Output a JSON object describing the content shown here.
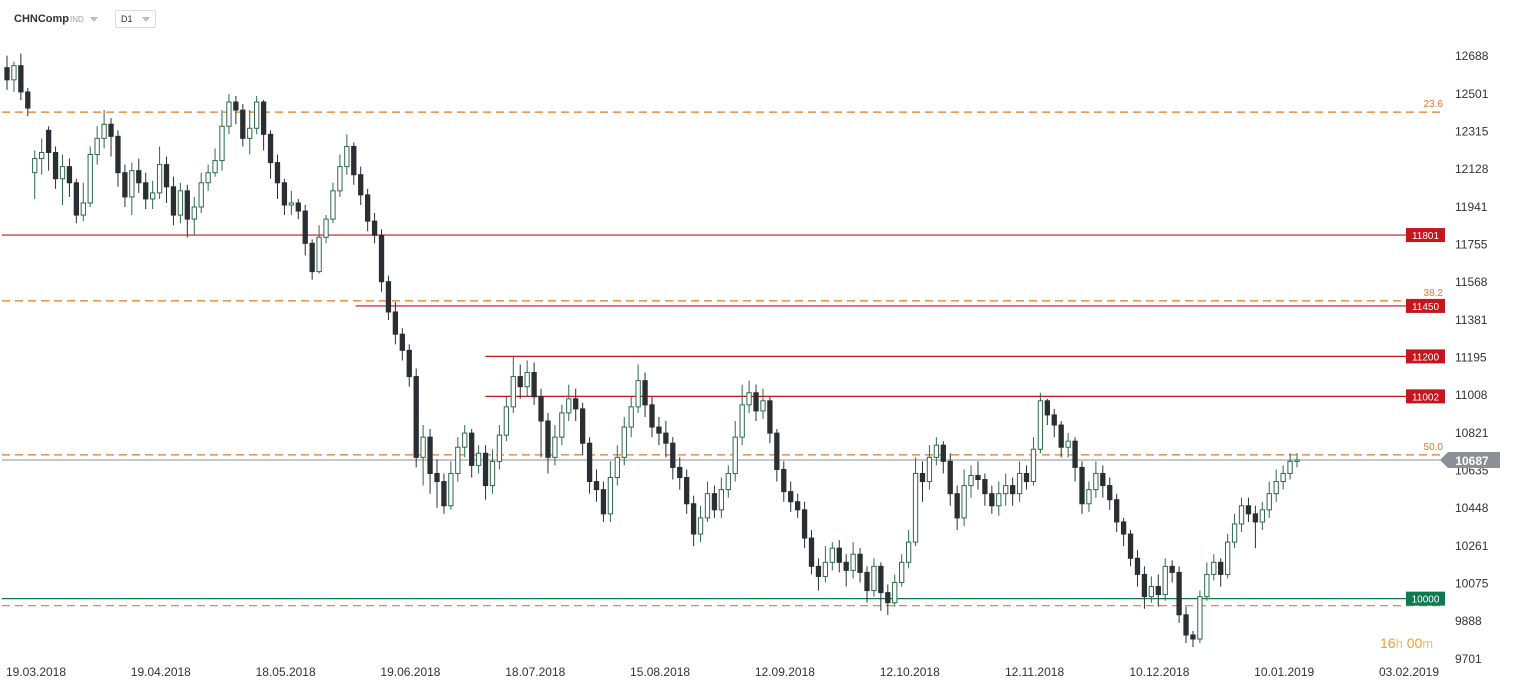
{
  "header": {
    "symbol": "CHNComp",
    "market": "IND",
    "timeframe": "D1"
  },
  "timer": {
    "hours": "16",
    "hours_unit": "h",
    "minutes": "00",
    "minutes_unit": "m"
  },
  "colors": {
    "bull_fill": "#ffffff",
    "bull_stroke": "#2d6b4a",
    "bear_fill": "#2a2f33",
    "resistance": "#c4161c",
    "support": "#0f7a52",
    "fib": "#e07a2a",
    "price_tag": "#8a9096",
    "axis_text": "#333333",
    "timer": "#f0a030"
  },
  "chart_data": {
    "type": "candlestick",
    "title": "",
    "xlabel": "",
    "ylabel": "",
    "ylim": [
      9701,
      12688
    ],
    "y_ticks": [
      12688,
      12501,
      12315,
      12128,
      11941,
      11755,
      11568,
      11381,
      11195,
      11008,
      10821,
      10635,
      10448,
      10261,
      10075,
      9888,
      9701
    ],
    "x_ticks": [
      "19.03.2018",
      "19.04.2018",
      "18.05.2018",
      "19.06.2018",
      "18.07.2018",
      "15.08.2018",
      "12.09.2018",
      "12.10.2018",
      "12.11.2018",
      "10.12.2018",
      "10.01.2019",
      "03.02.2019"
    ],
    "current_price": {
      "value": 10687,
      "label": "10687"
    },
    "horizontal_levels": [
      {
        "value": 11801,
        "label": "11801",
        "kind": "resistance",
        "x_start": 0
      },
      {
        "value": 11450,
        "label": "11450",
        "kind": "resistance",
        "x_start": 0.245
      },
      {
        "value": 11200,
        "label": "11200",
        "kind": "resistance",
        "x_start": 0.335
      },
      {
        "value": 11002,
        "label": "11002",
        "kind": "resistance",
        "x_start": 0.335
      },
      {
        "value": 10000,
        "label": "10000",
        "kind": "support",
        "x_start": 0
      }
    ],
    "fib_levels": [
      {
        "value": 12410,
        "label": "23.6"
      },
      {
        "value": 11475,
        "label": "38.2"
      },
      {
        "value": 10712,
        "label": "50.0"
      },
      {
        "value": 9965,
        "label": ""
      }
    ],
    "candles": [
      [
        12630,
        12570,
        12690,
        12520
      ],
      [
        12570,
        12640,
        12660,
        12510
      ],
      [
        12640,
        12510,
        12700,
        12470
      ],
      [
        12510,
        12430,
        12530,
        12390
      ],
      [
        12110,
        12180,
        12220,
        11980
      ],
      [
        12180,
        12210,
        12280,
        12100
      ],
      [
        12320,
        12210,
        12340,
        12120
      ],
      [
        12210,
        12080,
        12240,
        12030
      ],
      [
        12080,
        12140,
        12200,
        11950
      ],
      [
        12140,
        12060,
        12180,
        11990
      ],
      [
        12060,
        11900,
        12080,
        11860
      ],
      [
        11900,
        11960,
        12060,
        11870
      ],
      [
        11960,
        12200,
        12240,
        11940
      ],
      [
        12200,
        12280,
        12340,
        12150
      ],
      [
        12280,
        12350,
        12420,
        12230
      ],
      [
        12350,
        12290,
        12380,
        12190
      ],
      [
        12290,
        12110,
        12320,
        12040
      ],
      [
        12110,
        11990,
        12150,
        11940
      ],
      [
        11990,
        12120,
        12160,
        11900
      ],
      [
        12120,
        12060,
        12180,
        12010
      ],
      [
        12060,
        11980,
        12110,
        11930
      ],
      [
        11980,
        12010,
        12070,
        11930
      ],
      [
        12010,
        12150,
        12240,
        11980
      ],
      [
        12150,
        12040,
        12190,
        11960
      ],
      [
        12040,
        11900,
        12090,
        11850
      ],
      [
        11900,
        12020,
        12060,
        11860
      ],
      [
        12020,
        11880,
        12050,
        11790
      ],
      [
        11880,
        11940,
        11990,
        11800
      ],
      [
        11940,
        12060,
        12110,
        11910
      ],
      [
        12060,
        12110,
        12150,
        12020
      ],
      [
        12110,
        12170,
        12230,
        12090
      ],
      [
        12170,
        12340,
        12420,
        12120
      ],
      [
        12340,
        12460,
        12500,
        12300
      ],
      [
        12460,
        12420,
        12490,
        12350
      ],
      [
        12420,
        12280,
        12450,
        12240
      ],
      [
        12280,
        12330,
        12420,
        12200
      ],
      [
        12330,
        12460,
        12490,
        12300
      ],
      [
        12460,
        12300,
        12470,
        12220
      ],
      [
        12300,
        12160,
        12320,
        12080
      ],
      [
        12160,
        12060,
        12200,
        11980
      ],
      [
        12060,
        11950,
        12080,
        11900
      ],
      [
        11950,
        11960,
        12020,
        11900
      ],
      [
        11960,
        11920,
        11980,
        11880
      ],
      [
        11920,
        11760,
        11950,
        11700
      ],
      [
        11760,
        11620,
        11780,
        11580
      ],
      [
        11620,
        11790,
        11850,
        11610
      ],
      [
        11790,
        11880,
        11900,
        11760
      ],
      [
        11880,
        12020,
        12060,
        11860
      ],
      [
        12020,
        12140,
        12200,
        11990
      ],
      [
        12140,
        12240,
        12300,
        12100
      ],
      [
        12240,
        12100,
        12260,
        12050
      ],
      [
        12100,
        12000,
        12140,
        11950
      ],
      [
        12000,
        11870,
        12030,
        11820
      ],
      [
        11870,
        11800,
        11910,
        11760
      ],
      [
        11800,
        11570,
        11830,
        11520
      ],
      [
        11570,
        11420,
        11600,
        11380
      ],
      [
        11420,
        11310,
        11470,
        11260
      ],
      [
        11310,
        11230,
        11340,
        11180
      ],
      [
        11230,
        11100,
        11260,
        11050
      ],
      [
        11100,
        10700,
        11140,
        10650
      ],
      [
        10700,
        10800,
        10860,
        10560
      ],
      [
        10800,
        10620,
        10840,
        10520
      ],
      [
        10620,
        10580,
        10690,
        10450
      ],
      [
        10580,
        10460,
        10620,
        10420
      ],
      [
        10460,
        10620,
        10680,
        10440
      ],
      [
        10620,
        10750,
        10800,
        10580
      ],
      [
        10750,
        10820,
        10860,
        10700
      ],
      [
        10820,
        10660,
        10840,
        10600
      ],
      [
        10660,
        10720,
        10760,
        10620
      ],
      [
        10720,
        10560,
        10760,
        10490
      ],
      [
        10560,
        10680,
        10740,
        10520
      ],
      [
        10680,
        10810,
        10860,
        10640
      ],
      [
        10810,
        10950,
        11000,
        10780
      ],
      [
        10950,
        11100,
        11200,
        10920
      ],
      [
        11100,
        11050,
        11160,
        10990
      ],
      [
        11050,
        11120,
        11180,
        11000
      ],
      [
        11120,
        11000,
        11170,
        10960
      ],
      [
        11000,
        10880,
        11040,
        10700
      ],
      [
        10880,
        10700,
        10920,
        10620
      ],
      [
        10700,
        10800,
        10860,
        10660
      ],
      [
        10800,
        10920,
        10960,
        10760
      ],
      [
        10920,
        10990,
        11060,
        10880
      ],
      [
        10990,
        10940,
        11040,
        10880
      ],
      [
        10940,
        10770,
        10970,
        10710
      ],
      [
        10770,
        10580,
        10800,
        10520
      ],
      [
        10580,
        10540,
        10640,
        10480
      ],
      [
        10540,
        10420,
        10580,
        10380
      ],
      [
        10420,
        10600,
        10680,
        10380
      ],
      [
        10600,
        10700,
        10760,
        10560
      ],
      [
        10700,
        10850,
        10900,
        10660
      ],
      [
        10850,
        10950,
        11000,
        10800
      ],
      [
        10950,
        11080,
        11160,
        10920
      ],
      [
        11080,
        10960,
        11120,
        10900
      ],
      [
        10960,
        10850,
        11000,
        10800
      ],
      [
        10850,
        10820,
        10900,
        10760
      ],
      [
        10820,
        10770,
        10880,
        10700
      ],
      [
        10770,
        10650,
        10800,
        10590
      ],
      [
        10650,
        10600,
        10700,
        10540
      ],
      [
        10600,
        10470,
        10640,
        10420
      ],
      [
        10470,
        10320,
        10510,
        10260
      ],
      [
        10320,
        10400,
        10460,
        10280
      ],
      [
        10400,
        10520,
        10580,
        10380
      ],
      [
        10520,
        10440,
        10560,
        10400
      ],
      [
        10440,
        10540,
        10600,
        10400
      ],
      [
        10540,
        10620,
        10660,
        10500
      ],
      [
        10620,
        10800,
        10880,
        10580
      ],
      [
        10800,
        10960,
        11060,
        10760
      ],
      [
        10960,
        11020,
        11080,
        10920
      ],
      [
        11020,
        10930,
        11060,
        10880
      ],
      [
        10930,
        10980,
        11040,
        10890
      ],
      [
        10980,
        10820,
        11000,
        10770
      ],
      [
        10820,
        10640,
        10840,
        10580
      ],
      [
        10640,
        10530,
        10680,
        10480
      ],
      [
        10530,
        10480,
        10580,
        10430
      ],
      [
        10480,
        10440,
        10520,
        10400
      ],
      [
        10440,
        10300,
        10480,
        10250
      ],
      [
        10300,
        10160,
        10340,
        10120
      ],
      [
        10160,
        10110,
        10200,
        10040
      ],
      [
        10110,
        10180,
        10260,
        10080
      ],
      [
        10180,
        10250,
        10280,
        10140
      ],
      [
        10250,
        10180,
        10290,
        10130
      ],
      [
        10180,
        10140,
        10220,
        10060
      ],
      [
        10140,
        10220,
        10280,
        10100
      ],
      [
        10220,
        10130,
        10250,
        10080
      ],
      [
        10130,
        10040,
        10160,
        9980
      ],
      [
        10040,
        10160,
        10200,
        10010
      ],
      [
        10160,
        10030,
        10180,
        9940
      ],
      [
        10030,
        9980,
        10070,
        9920
      ],
      [
        9980,
        10080,
        10120,
        9960
      ],
      [
        10080,
        10180,
        10220,
        10060
      ],
      [
        10180,
        10280,
        10340,
        10150
      ],
      [
        10280,
        10620,
        10700,
        10260
      ],
      [
        10620,
        10580,
        10680,
        10480
      ],
      [
        10580,
        10700,
        10760,
        10540
      ],
      [
        10700,
        10760,
        10800,
        10660
      ],
      [
        10760,
        10680,
        10780,
        10620
      ],
      [
        10680,
        10520,
        10720,
        10460
      ],
      [
        10520,
        10400,
        10560,
        10340
      ],
      [
        10400,
        10560,
        10640,
        10360
      ],
      [
        10560,
        10610,
        10660,
        10500
      ],
      [
        10610,
        10590,
        10680,
        10540
      ],
      [
        10590,
        10520,
        10620,
        10460
      ],
      [
        10520,
        10460,
        10560,
        10420
      ],
      [
        10460,
        10520,
        10580,
        10410
      ],
      [
        10520,
        10560,
        10620,
        10460
      ],
      [
        10560,
        10520,
        10600,
        10460
      ],
      [
        10520,
        10620,
        10680,
        10480
      ],
      [
        10620,
        10580,
        10660,
        10540
      ],
      [
        10580,
        10740,
        10800,
        10560
      ],
      [
        10740,
        10980,
        11020,
        10720
      ],
      [
        10980,
        10910,
        10990,
        10860
      ],
      [
        10910,
        10860,
        10940,
        10800
      ],
      [
        10860,
        10750,
        10880,
        10700
      ],
      [
        10750,
        10780,
        10820,
        10700
      ],
      [
        10780,
        10650,
        10800,
        10580
      ],
      [
        10650,
        10470,
        10680,
        10420
      ],
      [
        10470,
        10540,
        10580,
        10430
      ],
      [
        10540,
        10620,
        10680,
        10500
      ],
      [
        10620,
        10560,
        10660,
        10500
      ],
      [
        10560,
        10490,
        10600,
        10440
      ],
      [
        10490,
        10380,
        10520,
        10330
      ],
      [
        10380,
        10320,
        10400,
        10260
      ],
      [
        10320,
        10200,
        10340,
        10160
      ],
      [
        10200,
        10120,
        10240,
        10060
      ],
      [
        10120,
        10010,
        10160,
        9950
      ],
      [
        10010,
        10060,
        10110,
        9980
      ],
      [
        10060,
        10020,
        10120,
        9960
      ],
      [
        10020,
        10160,
        10200,
        9990
      ],
      [
        10160,
        10130,
        10190,
        10080
      ],
      [
        10130,
        9920,
        10160,
        9880
      ],
      [
        9920,
        9820,
        9960,
        9780
      ],
      [
        9820,
        9800,
        9840,
        9760
      ],
      [
        9800,
        10010,
        10040,
        9780
      ],
      [
        10010,
        10120,
        10180,
        9990
      ],
      [
        10120,
        10180,
        10220,
        10090
      ],
      [
        10180,
        10120,
        10200,
        10060
      ],
      [
        10120,
        10280,
        10320,
        10100
      ],
      [
        10280,
        10370,
        10420,
        10250
      ],
      [
        10370,
        10460,
        10500,
        10330
      ],
      [
        10460,
        10420,
        10500,
        10380
      ],
      [
        10420,
        10380,
        10460,
        10250
      ],
      [
        10380,
        10440,
        10480,
        10340
      ],
      [
        10440,
        10520,
        10580,
        10400
      ],
      [
        10520,
        10580,
        10640,
        10480
      ],
      [
        10580,
        10620,
        10660,
        10540
      ],
      [
        10620,
        10680,
        10720,
        10590
      ],
      [
        10680,
        10687,
        10720,
        10650
      ]
    ]
  }
}
